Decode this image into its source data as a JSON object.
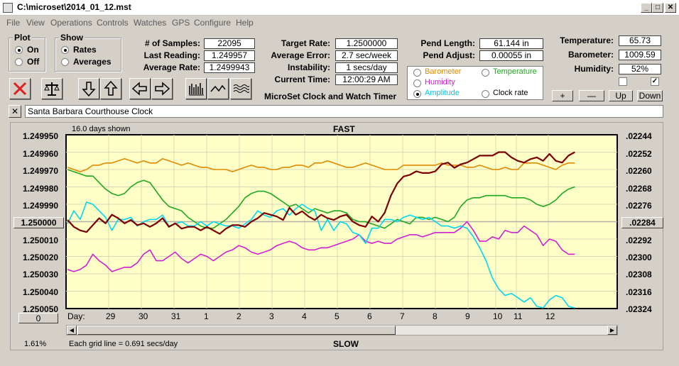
{
  "window": {
    "title": "C:\\microset\\2014_01_12.mst",
    "minimize": "_",
    "maximize": "□",
    "close": "✕"
  },
  "menu": [
    "File",
    "View",
    "Operations",
    "Controls",
    "Watches",
    "GPS",
    "Configure",
    "Help"
  ],
  "plot_group": {
    "title": "Plot",
    "on": "On",
    "off": "Off",
    "selected": "On"
  },
  "show_group": {
    "title": "Show",
    "rates": "Rates",
    "averages": "Averages",
    "selected": "Rates"
  },
  "stats": {
    "samples_label": "# of Samples:",
    "samples": "22095",
    "last_label": "Last Reading:",
    "last": "1.249957",
    "avg_rate_label": "Average Rate:",
    "avg_rate": "1.2499943",
    "target_label": "Target Rate:",
    "target": "1.2500000",
    "avg_error_label": "Average Error:",
    "avg_error": "2.7 sec/week",
    "instability_label": "Instability:",
    "instability": "1 secs/day",
    "current_time_label": "Current Time:",
    "current_time": "12:00:29 AM",
    "pend_length_label": "Pend Length:",
    "pend_length": "61.144 in",
    "pend_adjust_label": "Pend Adjust:",
    "pend_adjust": "0.00055 in",
    "temperature_label": "Temperature:",
    "temperature": "65.73",
    "barometer_label": "Barometer:",
    "barometer": "1009.59",
    "humidity_label": "Humidity:",
    "humidity": "52%"
  },
  "subtitle": "MicroSet Clock and Watch Timer",
  "legend": {
    "barometer": "Barometer",
    "temperature": "Temperature",
    "humidity": "Humidity",
    "amplitude": "Amplitude",
    "clock_rate": "Clock rate",
    "selected": "Amplitude"
  },
  "colors": {
    "barometer": "#e08a00",
    "temperature": "#1fa81f",
    "humidity": "#d020d0",
    "amplitude": "#00d8f0",
    "rate": "#7a0000",
    "plot_bg": "#ffffc8"
  },
  "checks": {
    "left": false,
    "right": true
  },
  "scale_buttons": {
    "plus": "+",
    "minus": "—",
    "up": "Up",
    "down": "Down"
  },
  "clock_name": "Santa Barbara Courthouse Clock",
  "clear_name": "✕",
  "chart_top": {
    "days_shown": "16.0 days shown",
    "fast": "FAST"
  },
  "chart_bottom": {
    "day_label": "Day:",
    "slow": "SLOW",
    "grid_info": "Each grid line = 0.691 secs/day",
    "percent": "1.61%",
    "left_value": "0"
  },
  "chart_data": {
    "type": "line",
    "x_tick_labels": [
      "29",
      "30",
      "31",
      "1",
      "2",
      "3",
      "4",
      "5",
      "6",
      "7",
      "8",
      "9",
      "10",
      "11",
      "12"
    ],
    "y_left_ticks": [
      "1.249950",
      "1.249960",
      "1.249970",
      "1.249980",
      "1.249990",
      "1.250000",
      "1.250010",
      "1.250020",
      "1.250030",
      "1.250040",
      "1.250050"
    ],
    "y_left_center": "1.250000",
    "y_right_ticks": [
      ".02244",
      ".02252",
      ".02260",
      ".02268",
      ".02276",
      ".02284",
      ".02292",
      ".02300",
      ".02308",
      ".02316",
      ".02324"
    ],
    "y_right_center": ".02284",
    "ylim_left": [
      1.24995,
      1.25005
    ],
    "ylim_right": [
      0.02244,
      0.02324
    ],
    "grid": true,
    "x": [
      0,
      1,
      2,
      3,
      4,
      5,
      6,
      7,
      8,
      9,
      10,
      11,
      12,
      13,
      14,
      15,
      16,
      17,
      18,
      19,
      20,
      21,
      22,
      23,
      24,
      25,
      26,
      27,
      28,
      29,
      30,
      31,
      32,
      33,
      34,
      35,
      36,
      37,
      38,
      39,
      40,
      41,
      42,
      43,
      44,
      45,
      46,
      47,
      48,
      49,
      50,
      51,
      52,
      53,
      54,
      55,
      56,
      57,
      58,
      59,
      60,
      61,
      62,
      63,
      64,
      65,
      66,
      67,
      68,
      69,
      70,
      71,
      72,
      73,
      74,
      75,
      76,
      77,
      78,
      79,
      80
    ],
    "series": [
      {
        "name": "Clock rate",
        "values": [
          1.249999,
          1.250003,
          1.250005,
          1.250006,
          1.250002,
          1.249998,
          1.250001,
          1.249996,
          1.249998,
          1.250001,
          1.249999,
          1.250002,
          1.250001,
          1.250003,
          1.250001,
          1.249998,
          1.250003,
          1.250001,
          1.250004,
          1.250003,
          1.250003,
          1.250005,
          1.250003,
          1.250005,
          1.250007,
          1.250004,
          1.250002,
          1.250002,
          1.250003,
          1.25,
          1.249998,
          1.249995,
          1.249996,
          1.249997,
          1.249999,
          1.249992,
          1.249996,
          1.249994,
          1.249997,
          1.249999,
          1.249996,
          1.249998,
          1.249999,
          1.249997,
          1.249996,
          1.25,
          1.250002,
          1.250003,
          1.249997,
          1.25,
          1.249995,
          1.249985,
          1.249978,
          1.249974,
          1.249973,
          1.249971,
          1.249972,
          1.249972,
          1.249971,
          1.249967,
          1.249966,
          1.249969,
          1.249967,
          1.249966,
          1.249964,
          1.249962,
          1.249962,
          1.249962,
          1.24996,
          1.24996,
          1.249963,
          1.249965,
          1.249966,
          1.249964,
          1.249963,
          1.249965,
          1.249961,
          1.249965,
          1.249966,
          1.249962,
          1.24996
        ]
      },
      {
        "name": "Barometer",
        "values": [
          0.02259,
          0.0226,
          0.02261,
          0.0226,
          0.02258,
          0.02258,
          0.02257,
          0.02257,
          0.02256,
          0.02255,
          0.02256,
          0.02257,
          0.02256,
          0.02257,
          0.02257,
          0.02255,
          0.02256,
          0.02257,
          0.02258,
          0.02257,
          0.02258,
          0.02259,
          0.02259,
          0.0226,
          0.0226,
          0.0226,
          0.02261,
          0.0226,
          0.02259,
          0.02258,
          0.02259,
          0.02259,
          0.0226,
          0.0226,
          0.02259,
          0.02259,
          0.02258,
          0.02258,
          0.02259,
          0.02257,
          0.02257,
          0.02256,
          0.02257,
          0.02258,
          0.02259,
          0.02259,
          0.02258,
          0.02257,
          0.02258,
          0.02259,
          0.0226,
          0.0226,
          0.0226,
          0.02258,
          0.02258,
          0.02258,
          0.02258,
          0.02258,
          0.02258,
          0.02257,
          0.02258,
          0.02258,
          0.02258,
          0.02259,
          0.02259,
          0.02258,
          0.02259,
          0.0226,
          0.0226,
          0.02259,
          0.0226,
          0.0226,
          0.02257,
          0.02257,
          0.02257,
          0.02258,
          0.02259,
          0.0226,
          0.02258,
          0.02257,
          0.02257
        ]
      },
      {
        "name": "Temperature",
        "values": [
          0.0226,
          0.02261,
          0.02262,
          0.02263,
          0.02263,
          0.02266,
          0.02269,
          0.02271,
          0.02272,
          0.02271,
          0.02268,
          0.02266,
          0.02265,
          0.02266,
          0.0227,
          0.02274,
          0.02277,
          0.02278,
          0.02279,
          0.02282,
          0.02284,
          0.02286,
          0.02287,
          0.02287,
          0.02285,
          0.02283,
          0.0228,
          0.02277,
          0.02273,
          0.02271,
          0.0227,
          0.0227,
          0.02271,
          0.02273,
          0.02275,
          0.02277,
          0.02276,
          0.02278,
          0.0228,
          0.02278,
          0.02279,
          0.0228,
          0.02279,
          0.02279,
          0.0228,
          0.02283,
          0.02284,
          0.02284,
          0.02285,
          0.02286,
          0.02287,
          0.02285,
          0.02283,
          0.02284,
          0.02285,
          0.02282,
          0.02282,
          0.02283,
          0.02282,
          0.02283,
          0.02284,
          0.02282,
          0.02277,
          0.02274,
          0.02273,
          0.02273,
          0.02272,
          0.02272,
          0.02272,
          0.02272,
          0.02273,
          0.02273,
          0.02273,
          0.02274,
          0.02276,
          0.02277,
          0.02276,
          0.02274,
          0.02271,
          0.02269,
          0.02268
        ]
      },
      {
        "name": "Humidity",
        "values": [
          0.02306,
          0.02307,
          0.02306,
          0.02304,
          0.02299,
          0.02302,
          0.02304,
          0.02307,
          0.02306,
          0.02305,
          0.02305,
          0.02303,
          0.02299,
          0.02297,
          0.02302,
          0.02302,
          0.023,
          0.02298,
          0.02301,
          0.02303,
          0.02301,
          0.02299,
          0.023,
          0.02302,
          0.023,
          0.02298,
          0.02297,
          0.02295,
          0.02296,
          0.02298,
          0.02299,
          0.02298,
          0.02297,
          0.02295,
          0.02294,
          0.02293,
          0.02294,
          0.02296,
          0.02297,
          0.02297,
          0.02296,
          0.02296,
          0.02295,
          0.02294,
          0.02293,
          0.02292,
          0.0229,
          0.02293,
          0.02294,
          0.02293,
          0.02294,
          0.02294,
          0.02292,
          0.02291,
          0.0229,
          0.0229,
          0.02291,
          0.0229,
          0.02289,
          0.02289,
          0.02289,
          0.02289,
          0.02287,
          0.02284,
          0.02288,
          0.02293,
          0.02293,
          0.02291,
          0.02292,
          0.02288,
          0.02289,
          0.02289,
          0.02286,
          0.02288,
          0.0229,
          0.02295,
          0.02292,
          0.02293,
          0.02297,
          0.02299,
          0.02299
        ]
      },
      {
        "name": "Amplitude",
        "values": [
          0.02285,
          0.02279,
          0.02283,
          0.02275,
          0.02276,
          0.02279,
          0.02282,
          0.02288,
          0.02283,
          0.02283,
          0.02282,
          0.02286,
          0.02284,
          0.02283,
          0.02283,
          0.02281,
          0.02286,
          0.02285,
          0.02284,
          0.02286,
          0.02286,
          0.02284,
          0.02286,
          0.02284,
          0.02285,
          0.02286,
          0.02286,
          0.02287,
          0.02285,
          0.02283,
          0.02279,
          0.02281,
          0.02282,
          0.02279,
          0.02278,
          0.02281,
          0.02278,
          0.02276,
          0.02278,
          0.02279,
          0.02288,
          0.02283,
          0.02288,
          0.02284,
          0.02285,
          0.02289,
          0.0229,
          0.02294,
          0.02287,
          0.02287,
          0.02283,
          0.02283,
          0.02284,
          0.02282,
          0.02281,
          0.02282,
          0.02283,
          0.02282,
          0.02284,
          0.02286,
          0.02286,
          0.02287,
          0.02286,
          0.02287,
          0.02291,
          0.02296,
          0.02302,
          0.0231,
          0.02315,
          0.02318,
          0.02317,
          0.02319,
          0.02321,
          0.02319,
          0.02323,
          0.02324,
          0.0232,
          0.02318,
          0.02319,
          0.02323,
          0.02324
        ]
      }
    ]
  }
}
